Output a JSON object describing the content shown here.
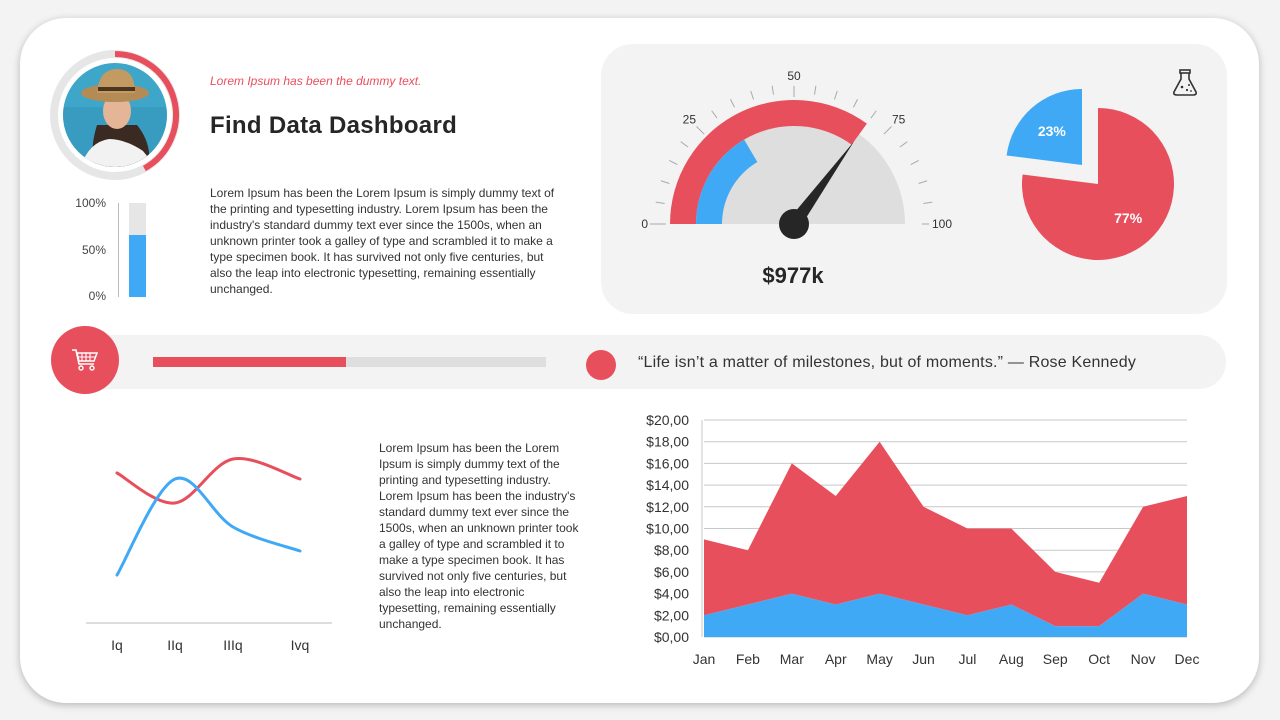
{
  "header": {
    "subtitle": "Lorem Ipsum has been the dummy text.",
    "title": "Find Data Dashboard",
    "paragraph": "Lorem Ipsum has been the Lorem Ipsum is simply dummy text of the printing and typesetting industry. Lorem Ipsum has been the industry's standard dummy text ever since the 1500s, when an unknown printer took a galley of type and scrambled it to make a type specimen book. It has survived not only five centuries, but also the leap into electronic typesetting, remaining essentially unchanged."
  },
  "profile": {
    "ring_progress_percent": 42,
    "ring_color": "#e84f5c"
  },
  "level_bar": {
    "labels": [
      "100%",
      "50%",
      "0%"
    ],
    "fill_percent": 66,
    "color": "#3fa9f5"
  },
  "gauge": {
    "labels": [
      "0",
      "25",
      "50",
      "75",
      "100"
    ],
    "outer_value": 70,
    "inner_value": 33,
    "needle_value": 70,
    "value_text": "$977k",
    "colors": {
      "outer": "#e84f5c",
      "inner": "#3fa9f5",
      "track": "#dedede"
    }
  },
  "pie": {
    "icon": "flask-icon",
    "slices": [
      {
        "label": "77%",
        "value": 77,
        "color": "#e84f5c"
      },
      {
        "label": "23%",
        "value": 23,
        "color": "#3fa9f5",
        "exploded": true
      }
    ]
  },
  "banner": {
    "icon": "shopping-cart-icon",
    "progress_percent": 49,
    "quote": "“Life isn’t a matter of milestones, but of moments.” — Rose Kennedy"
  },
  "lower_paragraph": "Lorem Ipsum has been the Lorem Ipsum is simply dummy text of the printing and typesetting industry. Lorem Ipsum has been the industry's standard dummy text ever since the 1500s, when an unknown printer took a galley of type and scrambled it to make a type specimen book. It has survived not only five centuries, but also the leap into electronic typesetting, remaining essentially unchanged.",
  "chart_data": [
    {
      "type": "line",
      "smooth": true,
      "categories": [
        "Iq",
        "IIq",
        "IIIq",
        "Ivq"
      ],
      "series": [
        {
          "values": [
            3.75,
            3.0,
            4.1,
            3.6
          ],
          "color": "#e84f5c"
        },
        {
          "values": [
            1.2,
            3.6,
            2.4,
            1.8
          ],
          "color": "#3fa9f5"
        }
      ],
      "ylim": [
        0,
        5
      ],
      "grid": false
    },
    {
      "type": "area",
      "stacked": true,
      "categories": [
        "Jan",
        "Feb",
        "Mar",
        "Apr",
        "May",
        "Jun",
        "Jul",
        "Aug",
        "Sep",
        "Oct",
        "Nov",
        "Dec"
      ],
      "series": [
        {
          "values": [
            2,
            3,
            4,
            3,
            4,
            3,
            2,
            3,
            1,
            1,
            4,
            3
          ],
          "color": "#3fa9f5"
        },
        {
          "values": [
            7,
            5,
            12,
            10,
            14,
            9,
            8,
            7,
            5,
            4,
            8,
            10
          ],
          "color": "#e84f5c"
        }
      ],
      "yticks": [
        "$0,00",
        "$2,00",
        "$4,00",
        "$6,00",
        "$8,00",
        "$10,00",
        "$12,00",
        "$14,00",
        "$16,00",
        "$18,00",
        "$20,00"
      ],
      "ylim": [
        0,
        20
      ],
      "grid": true
    }
  ]
}
